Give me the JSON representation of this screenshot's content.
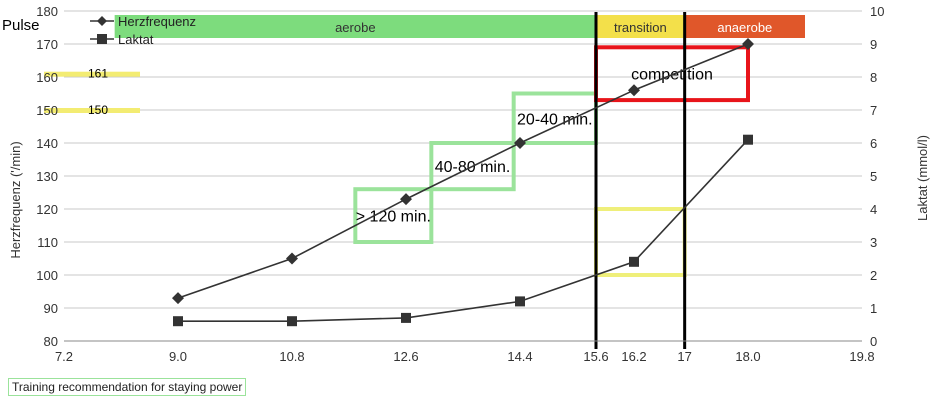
{
  "chart_data": {
    "type": "line",
    "title": "",
    "xlabel": "",
    "ylabel_left": "Herzfrequenz ('/min)",
    "ylabel_right": "Laktat (mmol/l)",
    "corner_label": "Pulse",
    "x_ticks": [
      "7.2",
      "9.0",
      "10.8",
      "12.6",
      "14.4",
      "15.6",
      "16.2",
      "17",
      "18.0",
      "19.8"
    ],
    "xlim": [
      7.2,
      19.8
    ],
    "ylim_left": [
      80,
      180
    ],
    "ylim_right": [
      0,
      10
    ],
    "yticks_left": [
      "80",
      "90",
      "100",
      "110",
      "120",
      "130",
      "140",
      "150",
      "160",
      "170",
      "180"
    ],
    "yticks_right": [
      "0",
      "1",
      "2",
      "3",
      "4",
      "5",
      "6",
      "7",
      "8",
      "9",
      "10"
    ],
    "grid": "horizontal",
    "legend": "top-left",
    "series": [
      {
        "name": "Herzfrequenz",
        "axis": "left",
        "marker": "diamond",
        "x": [
          9.0,
          10.8,
          12.6,
          14.4,
          16.2,
          18.0
        ],
        "y": [
          93,
          105,
          123,
          140,
          156,
          170
        ]
      },
      {
        "name": "Laktat",
        "axis": "right",
        "marker": "square",
        "x": [
          9.0,
          10.8,
          12.6,
          14.4,
          16.2,
          18.0
        ],
        "y": [
          0.6,
          0.6,
          0.7,
          1.2,
          2.4,
          6.1
        ]
      }
    ],
    "zones": [
      {
        "label": "aerobe",
        "x_from": 8.0,
        "x_to": 15.6,
        "color": "#7ddc7d",
        "text_color": "#333333"
      },
      {
        "label": "transition",
        "x_from": 15.6,
        "x_to": 17.0,
        "color": "#f3e04a",
        "text_color": "#333333"
      },
      {
        "label": "anaerobe",
        "x_from": 17.0,
        "x_to": 18.9,
        "color": "#e0572a",
        "text_color": "#ffffff"
      }
    ],
    "vlines": [
      15.6,
      17.0
    ],
    "hr_markers": [
      {
        "label": "161",
        "value": 161
      },
      {
        "label": "150",
        "value": 150
      }
    ],
    "boxes": [
      {
        "label": "> 120 min.",
        "x_from": 11.8,
        "x_to": 13.0,
        "y_from": 110,
        "y_to": 126,
        "color": "#9be39b"
      },
      {
        "label": "40-80 min.",
        "x_from": 13.0,
        "x_to": 14.3,
        "y_from": 126,
        "y_to": 140,
        "color": "#9be39b"
      },
      {
        "label": "20-40 min.",
        "x_from": 14.3,
        "x_to": 15.6,
        "y_from": 140,
        "y_to": 155,
        "color": "#9be39b"
      },
      {
        "label": "competition",
        "x_from": 15.6,
        "x_to": 18.0,
        "y_from": 153,
        "y_to": 169,
        "color": "#e8141a"
      },
      {
        "label": "",
        "x_from": 15.6,
        "x_to": 17.0,
        "y_from": 100,
        "y_to": 120,
        "color": "#efef7a"
      }
    ],
    "footnote": "Training recommendation for staying power"
  }
}
